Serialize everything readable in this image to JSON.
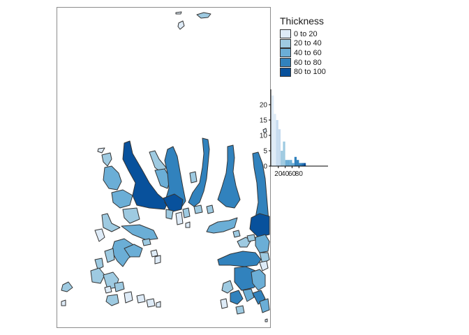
{
  "legend": {
    "title": "Thickness",
    "entries": [
      {
        "label": "0 to 20",
        "color": "#deebf7"
      },
      {
        "label": "20 to 40",
        "color": "#9ecae1"
      },
      {
        "label": "40 to 60",
        "color": "#6baed6"
      },
      {
        "label": "60 to 80",
        "color": "#3182bd"
      },
      {
        "label": "80 to 100",
        "color": "#08519c"
      }
    ]
  },
  "histogram": {
    "y_ticks": [
      "0",
      "5",
      "10",
      "15",
      "20"
    ],
    "x_tick_labels": [
      "20",
      "40",
      "60",
      "80"
    ],
    "ylim": [
      0,
      25
    ],
    "xlim": [
      0,
      100
    ],
    "bins": [
      {
        "x0": 0,
        "x1": 4,
        "count": 23,
        "color": "#deebf7"
      },
      {
        "x0": 4,
        "x1": 8,
        "count": 17,
        "color": "#deebf7"
      },
      {
        "x0": 8,
        "x1": 12,
        "count": 15,
        "color": "#c6dbef"
      },
      {
        "x0": 12,
        "x1": 16,
        "count": 12,
        "color": "#c6dbef"
      },
      {
        "x0": 16,
        "x1": 20,
        "count": 5,
        "color": "#9ecae1"
      },
      {
        "x0": 20,
        "x1": 24,
        "count": 8,
        "color": "#9ecae1"
      },
      {
        "x0": 24,
        "x1": 28,
        "count": 2,
        "color": "#6baed6"
      },
      {
        "x0": 28,
        "x1": 32,
        "count": 2,
        "color": "#6baed6"
      },
      {
        "x0": 32,
        "x1": 36,
        "count": 2,
        "color": "#6baed6"
      },
      {
        "x0": 36,
        "x1": 40,
        "count": 1,
        "color": "#6baed6"
      },
      {
        "x0": 40,
        "x1": 44,
        "count": 3,
        "color": "#3182bd"
      },
      {
        "x0": 44,
        "x1": 48,
        "count": 2,
        "color": "#3182bd"
      },
      {
        "x0": 48,
        "x1": 52,
        "count": 1,
        "color": "#3182bd"
      },
      {
        "x0": 52,
        "x1": 56,
        "count": 1,
        "color": "#2171b5"
      },
      {
        "x0": 56,
        "x1": 60,
        "count": 1,
        "color": "#08519c"
      }
    ]
  }
}
